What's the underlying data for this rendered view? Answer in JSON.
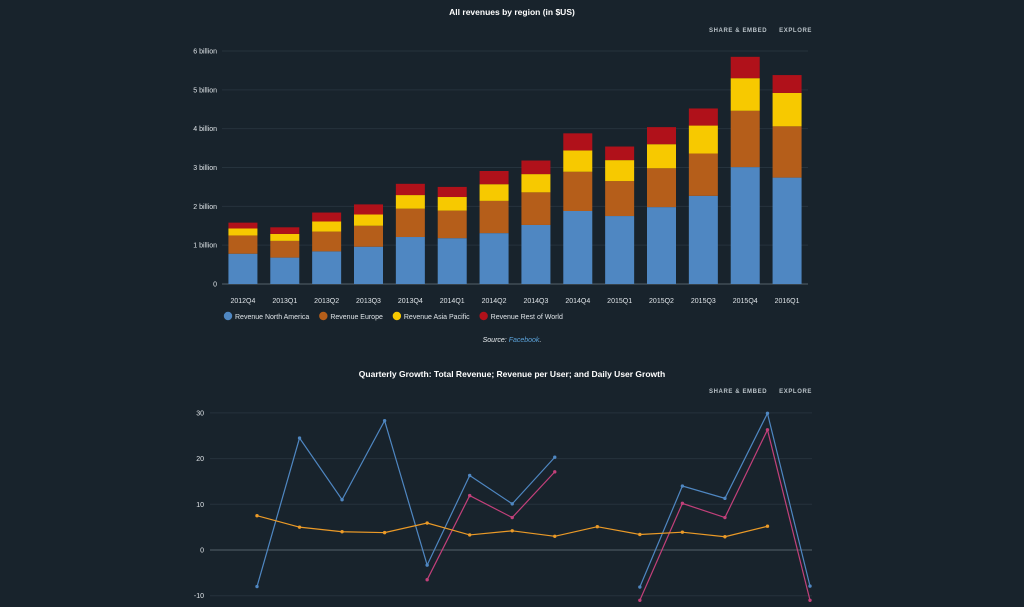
{
  "charts": [
    {
      "title": "All revenues by region (in $US)",
      "actions": {
        "share": "SHARE & EMBED",
        "explore": "EXPLORE"
      }
    },
    {
      "title": "Quarterly Growth: Total Revenue; Revenue per User; and Daily User Growth",
      "actions": {
        "share": "SHARE & EMBED",
        "explore": "EXPLORE"
      }
    }
  ],
  "source": {
    "prefix": "Source:",
    "link": "Facebook",
    "suffix": "."
  },
  "chart_data": [
    {
      "type": "bar",
      "stacked": true,
      "title": "All revenues by region (in $US)",
      "categories": [
        "2012Q4",
        "2013Q1",
        "2013Q2",
        "2013Q3",
        "2013Q4",
        "2014Q1",
        "2014Q2",
        "2014Q3",
        "2014Q4",
        "2015Q1",
        "2015Q2",
        "2015Q3",
        "2015Q4",
        "2016Q1"
      ],
      "series": [
        {
          "name": "Revenue North America",
          "color": "#4f87c2",
          "values": [
            0.78,
            0.68,
            0.84,
            0.96,
            1.21,
            1.18,
            1.31,
            1.52,
            1.88,
            1.75,
            1.98,
            2.27,
            3.01,
            2.74
          ]
        },
        {
          "name": "Revenue Europe",
          "color": "#b55e1a",
          "values": [
            0.47,
            0.43,
            0.51,
            0.54,
            0.73,
            0.71,
            0.83,
            0.84,
            1.01,
            0.9,
            1.0,
            1.09,
            1.45,
            1.32
          ]
        },
        {
          "name": "Revenue Asia Pacific",
          "color": "#f7c900",
          "values": [
            0.18,
            0.18,
            0.26,
            0.29,
            0.35,
            0.35,
            0.43,
            0.47,
            0.55,
            0.54,
            0.62,
            0.72,
            0.84,
            0.86
          ]
        },
        {
          "name": "Revenue Rest of World",
          "color": "#b0111a",
          "values": [
            0.15,
            0.17,
            0.23,
            0.26,
            0.29,
            0.26,
            0.34,
            0.35,
            0.44,
            0.35,
            0.44,
            0.44,
            0.55,
            0.46
          ]
        }
      ],
      "yticks": [
        0,
        1,
        2,
        3,
        4,
        5,
        6
      ],
      "ytick_labels": [
        "0",
        "1 billion",
        "2 billion",
        "3 billion",
        "4 billion",
        "5 billion",
        "6 billion"
      ],
      "ylim": [
        0,
        6.2
      ],
      "legend": "bottom-left"
    },
    {
      "type": "line",
      "title": "Quarterly Growth: Total Revenue; Revenue per User; and Daily User Growth",
      "x_count": 14,
      "series": [
        {
          "color": "#4f87c2",
          "values": [
            -8,
            24.5,
            11,
            28.3,
            -3.3,
            16.3,
            10.1,
            20.3,
            null,
            -8.1,
            14,
            11.3,
            29.9,
            -7.9
          ]
        },
        {
          "color": "#c2407a",
          "values": [
            null,
            null,
            null,
            null,
            -6.5,
            11.9,
            7.1,
            17.1,
            null,
            -11,
            10.2,
            7.1,
            26.3,
            -11
          ]
        },
        {
          "color": "#eb9a27",
          "values": [
            7.5,
            5,
            4,
            3.8,
            5.9,
            3.3,
            4.2,
            3,
            5.1,
            3.4,
            3.9,
            2.9,
            5.2,
            null
          ]
        }
      ],
      "yticks": [
        -10,
        0,
        10,
        20,
        30
      ],
      "ytick_labels": [
        "-10",
        "0",
        "10",
        "20",
        "30"
      ]
    }
  ]
}
